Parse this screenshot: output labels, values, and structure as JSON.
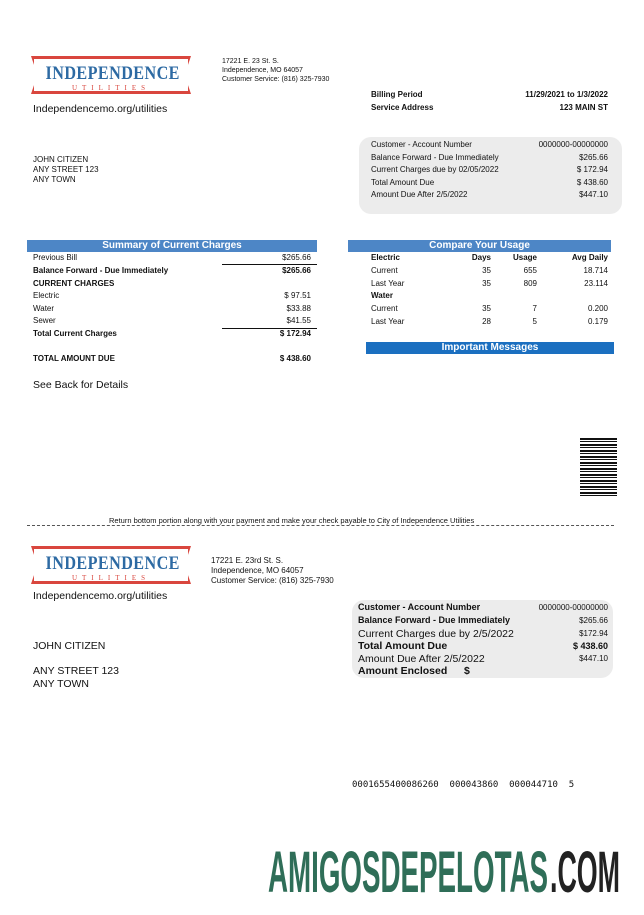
{
  "header": {
    "logo_name": "INDEPENDENCE",
    "logo_sub": "UTILITIES",
    "address": [
      "17221 E. 23 St. S.",
      "Independence, MO 64057",
      "Customer Service: (816) 325-7930"
    ],
    "website": "Independencemo.org/utilities"
  },
  "billing": {
    "period_label": "Billing Period",
    "period_value": "11/29/2021 to 1/3/2022",
    "service_label": "Service Address",
    "service_value": "123 MAIN ST"
  },
  "customer": [
    "JOHN CITIZEN",
    "ANY STREET 123",
    "ANY TOWN"
  ],
  "account_box": [
    [
      "Customer - Account Number",
      "0000000-00000000"
    ],
    [
      "Balance Forward - Due Immediately",
      "$265.66"
    ],
    [
      "Current Charges due by 02/05/2022",
      "$ 172.94"
    ],
    [
      "Total Amount Due",
      "$ 438.60"
    ],
    [
      "Amount Due After 2/5/2022",
      "$447.10"
    ]
  ],
  "summary": {
    "title": "Summary of Current Charges",
    "rows": [
      [
        "Previous Bill",
        "$265.66"
      ],
      [
        "Balance Forward - Due Immediately",
        "$265.66"
      ],
      [
        "CURRENT CHARGES"
      ],
      [
        "Electric",
        "$ 97.51"
      ],
      [
        "Water",
        "$33.88"
      ],
      [
        "Sewer",
        "$41.55"
      ],
      [
        "Total Current Charges",
        "$ 172.94"
      ],
      [
        "TOTAL AMOUNT DUE",
        "$ 438.60"
      ]
    ],
    "note": "See Back for Details"
  },
  "usage": {
    "title": "Compare Your Usage",
    "columns": [
      "Electric",
      "Days",
      "Usage",
      "Avg Daily"
    ],
    "electric": [
      [
        "Current",
        "35",
        "655",
        "18.714"
      ],
      [
        "Last Year",
        "35",
        "809",
        "23.114"
      ]
    ],
    "water_label": "Water",
    "water": [
      [
        "Current",
        "35",
        "7",
        "0.200"
      ],
      [
        "Last Year",
        "28",
        "5",
        "0.179"
      ]
    ]
  },
  "messages_title": "Important Messages",
  "return_note": "Return bottom portion along with your payment and make your check payable to City of Independence Utilities",
  "stub": {
    "logo_name": "INDEPENDENCE",
    "logo_sub": "UTILITIES",
    "address": [
      "17221 E. 23rd St. S.",
      "Independence, MO 64057",
      "Customer Service: (816) 325-7930"
    ],
    "website": "Independencemo.org/utilities",
    "customer": [
      "JOHN CITIZEN",
      "ANY STREET 123",
      "ANY TOWN"
    ],
    "box": [
      [
        "Customer - Account Number",
        "0000000-00000000"
      ],
      [
        "Balance Forward - Due Immediately",
        "$265.66"
      ],
      [
        "Current Charges due by 2/5/2022",
        "$172.94"
      ],
      [
        "Total Amount Due",
        "$ 438.60"
      ],
      [
        "Amount Due After 2/5/2022",
        "$447.10"
      ],
      [
        "Amount Enclosed",
        "$"
      ]
    ],
    "scan_line": "0001655400086260  000043860  000044710  5"
  },
  "watermark": [
    "AMIGOSDEPELOTAS",
    ".COM"
  ]
}
